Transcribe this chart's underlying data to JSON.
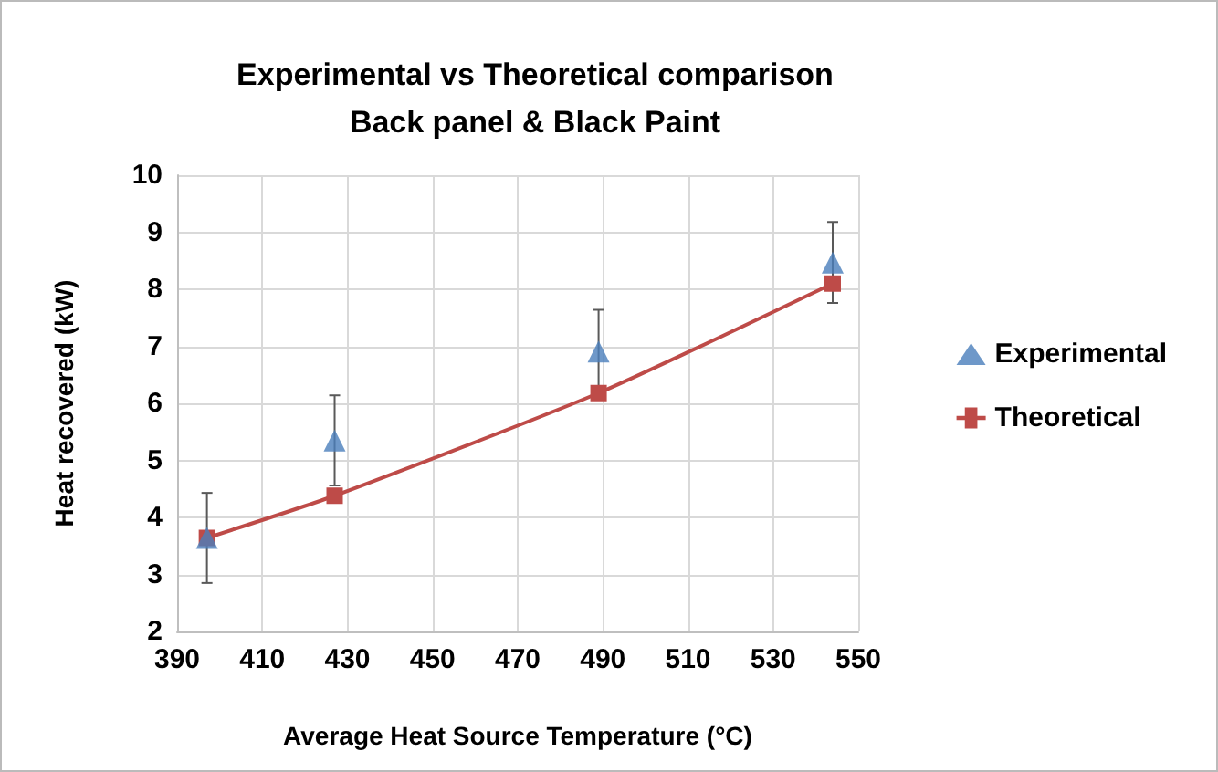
{
  "chart_data": {
    "type": "scatter",
    "title": "Experimental vs Theoretical comparison\nBack panel & Black Paint",
    "xlabel": "Average Heat Source Temperature (°C)",
    "ylabel": "Heat recovered (kW)",
    "xlim": [
      390,
      550
    ],
    "xticks": [
      390,
      410,
      430,
      450,
      470,
      490,
      510,
      530,
      550
    ],
    "ylim": [
      2,
      10
    ],
    "yticks": [
      2,
      3,
      4,
      5,
      6,
      7,
      8,
      9,
      10
    ],
    "grid": true,
    "legend": "right",
    "series": [
      {
        "name": "Experimental",
        "marker": "triangle",
        "color": "#4a7ebb",
        "x": [
          397,
          427,
          489,
          544
        ],
        "values": [
          3.64,
          5.35,
          6.91,
          8.47
        ],
        "errors": [
          [
            2.85,
            4.43
          ],
          [
            4.56,
            6.14
          ],
          0.73,
          [
            7.76,
            9.18
          ]
        ]
      },
      {
        "name": "Theoretical",
        "type": "line",
        "marker": "square",
        "color": "#be4b48",
        "x": [
          397,
          427,
          489,
          544
        ],
        "values": [
          3.64,
          4.38,
          6.18,
          8.1
        ]
      }
    ]
  }
}
